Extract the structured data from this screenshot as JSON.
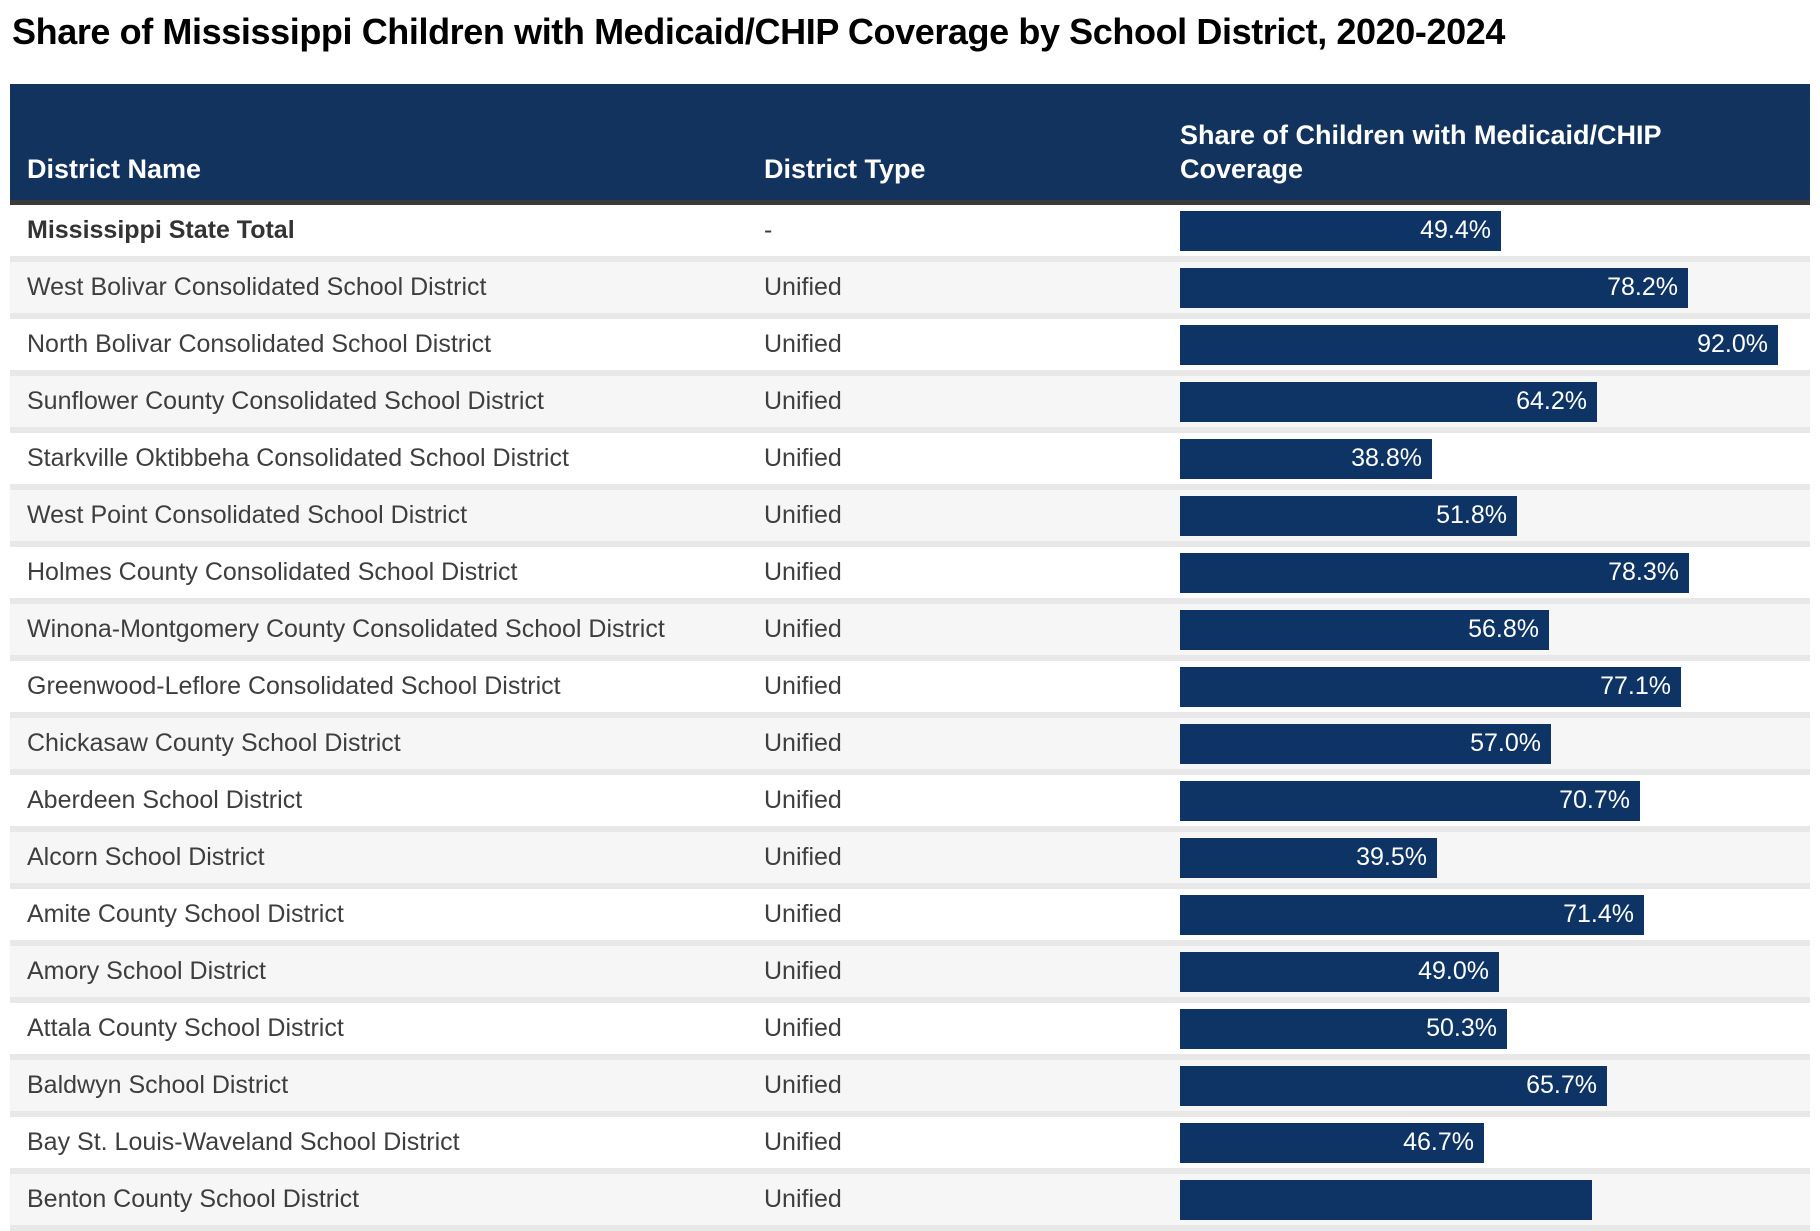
{
  "title": "Share of Mississippi Children with Medicaid/CHIP Coverage by School District, 2020-2024",
  "colors": {
    "header_bg": "#12335E",
    "header_text": "#ffffff",
    "header_border": "#3a3a3a",
    "bar_fill": "#0D3464",
    "bar_label": "#ffffff",
    "row_alt_bg": "#f6f6f6",
    "row_divider": "#e8e8e8",
    "body_text": "#3e3e3e"
  },
  "table": {
    "columns": {
      "district_name": "District Name",
      "district_type": "District Type",
      "coverage": "Share of Children with Medicaid/CHIP Coverage"
    },
    "rows": [
      {
        "name": "Mississippi State Total",
        "type": "-",
        "bar_pct": 49.4,
        "share_label": "49.4%",
        "emphasis": true
      },
      {
        "name": "West Bolivar Consolidated School District",
        "type": "Unified",
        "bar_pct": 78.2,
        "share_label": "78.2%"
      },
      {
        "name": "North Bolivar Consolidated School District",
        "type": "Unified",
        "bar_pct": 92.0,
        "share_label": "92.0%"
      },
      {
        "name": "Sunflower County Consolidated School District",
        "type": "Unified",
        "bar_pct": 64.2,
        "share_label": "64.2%"
      },
      {
        "name": "Starkville Oktibbeha Consolidated School District",
        "type": "Unified",
        "bar_pct": 38.8,
        "share_label": "38.8%"
      },
      {
        "name": "West Point Consolidated School District",
        "type": "Unified",
        "bar_pct": 51.8,
        "share_label": "51.8%"
      },
      {
        "name": "Holmes County Consolidated School District",
        "type": "Unified",
        "bar_pct": 78.3,
        "share_label": "78.3%"
      },
      {
        "name": "Winona-Montgomery County Consolidated School District",
        "type": "Unified",
        "bar_pct": 56.8,
        "share_label": "56.8%"
      },
      {
        "name": "Greenwood-Leflore Consolidated School District",
        "type": "Unified",
        "bar_pct": 77.1,
        "share_label": "77.1%"
      },
      {
        "name": "Chickasaw County School District",
        "type": "Unified",
        "bar_pct": 57.0,
        "share_label": "57.0%"
      },
      {
        "name": "Aberdeen School District",
        "type": "Unified",
        "bar_pct": 70.7,
        "share_label": "70.7%"
      },
      {
        "name": "Alcorn School District",
        "type": "Unified",
        "bar_pct": 39.5,
        "share_label": "39.5%"
      },
      {
        "name": "Amite County School District",
        "type": "Unified",
        "bar_pct": 71.4,
        "share_label": "71.4%"
      },
      {
        "name": "Amory School District",
        "type": "Unified",
        "bar_pct": 49.0,
        "share_label": "49.0%"
      },
      {
        "name": "Attala County School District",
        "type": "Unified",
        "bar_pct": 50.3,
        "share_label": "50.3%"
      },
      {
        "name": "Baldwyn School District",
        "type": "Unified",
        "bar_pct": 65.7,
        "share_label": "65.7%"
      },
      {
        "name": "Bay St. Louis-Waveland School District",
        "type": "Unified",
        "bar_pct": 46.7,
        "share_label": "46.7%"
      },
      {
        "name": "Benton County School District",
        "type": "Unified",
        "bar_pct": 63.4,
        "share_label": "",
        "clipped_at_bottom": true
      }
    ]
  },
  "chart_data": {
    "type": "bar",
    "orientation": "horizontal",
    "title": "Share of Mississippi Children with Medicaid/CHIP Coverage by School District, 2020-2024",
    "categories": [
      "Mississippi State Total",
      "West Bolivar Consolidated School District",
      "North Bolivar Consolidated School District",
      "Sunflower County Consolidated School District",
      "Starkville Oktibbeha Consolidated School District",
      "West Point Consolidated School District",
      "Holmes County Consolidated School District",
      "Winona-Montgomery County Consolidated School District",
      "Greenwood-Leflore Consolidated School District",
      "Chickasaw County School District",
      "Aberdeen School District",
      "Alcorn School District",
      "Amite County School District",
      "Amory School District",
      "Attala County School District",
      "Baldwyn School District",
      "Bay St. Louis-Waveland School District",
      "Benton County School District"
    ],
    "values": [
      49.4,
      78.2,
      92.0,
      64.2,
      38.8,
      51.8,
      78.3,
      56.8,
      77.1,
      57.0,
      70.7,
      39.5,
      71.4,
      49.0,
      50.3,
      65.7,
      46.7,
      null
    ],
    "unit": "%",
    "xlim": [
      0,
      100
    ],
    "value_labels": "inside-bar-right",
    "grid": false,
    "legend": false,
    "notes": "Rendered as table rows with in-cell bars; last row partially cut off at image bottom, its value label not visible."
  }
}
